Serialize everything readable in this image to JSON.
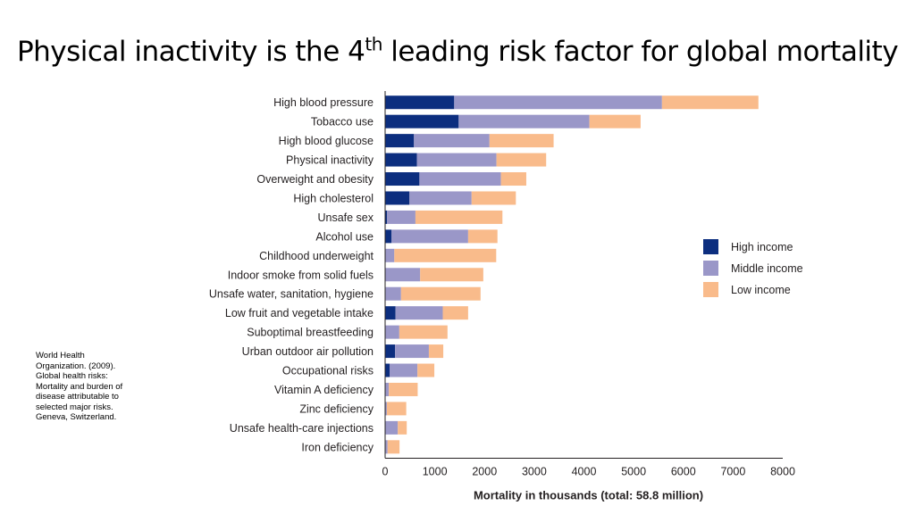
{
  "slide": {
    "title_main": "Physical inactivity is the 4",
    "title_sup": "th",
    "title_rest": " leading risk factor for global mortality",
    "citation": "World Health Organization. (2009). Global health risks: Mortality and burden of disease attributable to selected major risks. Geneva, Switzerland."
  },
  "chart_data": {
    "type": "bar",
    "orientation": "horizontal",
    "stacked": true,
    "title": "",
    "xlabel": "Mortality in thousands (total: 58.8 million)",
    "ylabel": "",
    "xlim": [
      0,
      8000
    ],
    "xticks": [
      0,
      1000,
      2000,
      3000,
      4000,
      5000,
      6000,
      7000,
      8000
    ],
    "grid": false,
    "legend_position": "right",
    "categories": [
      "High blood pressure",
      "Tobacco use",
      "High blood glucose",
      "Physical inactivity",
      "Overweight and obesity",
      "High cholesterol",
      "Unsafe sex",
      "Alcohol use",
      "Childhood underweight",
      "Indoor smoke from solid fuels",
      "Unsafe water, sanitation, hygiene",
      "Low fruit and vegetable intake",
      "Suboptimal breastfeeding",
      "Urban outdoor air pollution",
      "Occupational risks",
      "Vitamin A deficiency",
      "Zinc deficiency",
      "Unsafe health-care injections",
      "Iron deficiency"
    ],
    "series": [
      {
        "name": "High income",
        "color": "#0c2e7f",
        "values": [
          1390,
          1480,
          580,
          640,
          690,
          490,
          40,
          130,
          5,
          5,
          10,
          210,
          5,
          200,
          90,
          5,
          5,
          5,
          10
        ]
      },
      {
        "name": "Middle income",
        "color": "#9a97c8",
        "values": [
          4180,
          2630,
          1520,
          1600,
          1640,
          1250,
          570,
          1540,
          180,
          700,
          310,
          950,
          280,
          680,
          560,
          70,
          30,
          250,
          40
        ]
      },
      {
        "name": "Low income",
        "color": "#f9bb8b",
        "values": [
          1940,
          1030,
          1290,
          1000,
          510,
          890,
          1750,
          590,
          2050,
          1270,
          1600,
          510,
          970,
          290,
          340,
          580,
          390,
          180,
          240
        ]
      }
    ]
  }
}
